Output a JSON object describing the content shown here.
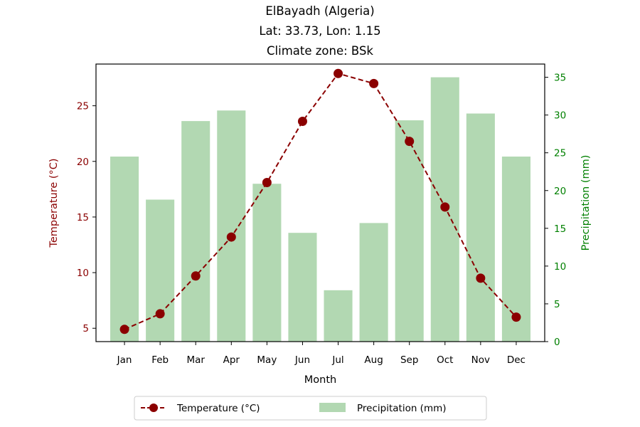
{
  "chart_data": {
    "type": "bar+line",
    "title_lines": [
      "ElBayadh (Algeria)",
      "Lat: 33.73, Lon: 1.15",
      "Climate zone: BSk"
    ],
    "xlabel": "Month",
    "ylabel_left": "Temperature (°C)",
    "ylabel_right": "Precipitation (mm)",
    "categories": [
      "Jan",
      "Feb",
      "Mar",
      "Apr",
      "May",
      "Jun",
      "Jul",
      "Aug",
      "Sep",
      "Oct",
      "Nov",
      "Dec"
    ],
    "temperature": {
      "name": "Temperature (°C)",
      "values": [
        4.9,
        6.3,
        9.7,
        13.2,
        18.1,
        23.6,
        27.9,
        27.0,
        21.8,
        15.9,
        9.5,
        6.0
      ],
      "color": "#8b0000",
      "style": "dashed line with circle markers"
    },
    "precipitation": {
      "name": "Precipitation (mm)",
      "values": [
        24.5,
        18.8,
        29.2,
        30.6,
        20.9,
        14.4,
        6.8,
        15.7,
        29.3,
        35.0,
        30.2,
        24.5
      ],
      "color": "#b2d8b2"
    },
    "y_left": {
      "ticks": [
        5,
        10,
        15,
        20,
        25
      ],
      "range": [
        3.8,
        28.75
      ],
      "color": "#8b0000"
    },
    "y_right": {
      "ticks": [
        0,
        5,
        10,
        15,
        20,
        25,
        30,
        35
      ],
      "range": [
        0,
        36.75
      ],
      "color": "#008000"
    },
    "grid": false,
    "legend_placement": "bottom-center"
  }
}
